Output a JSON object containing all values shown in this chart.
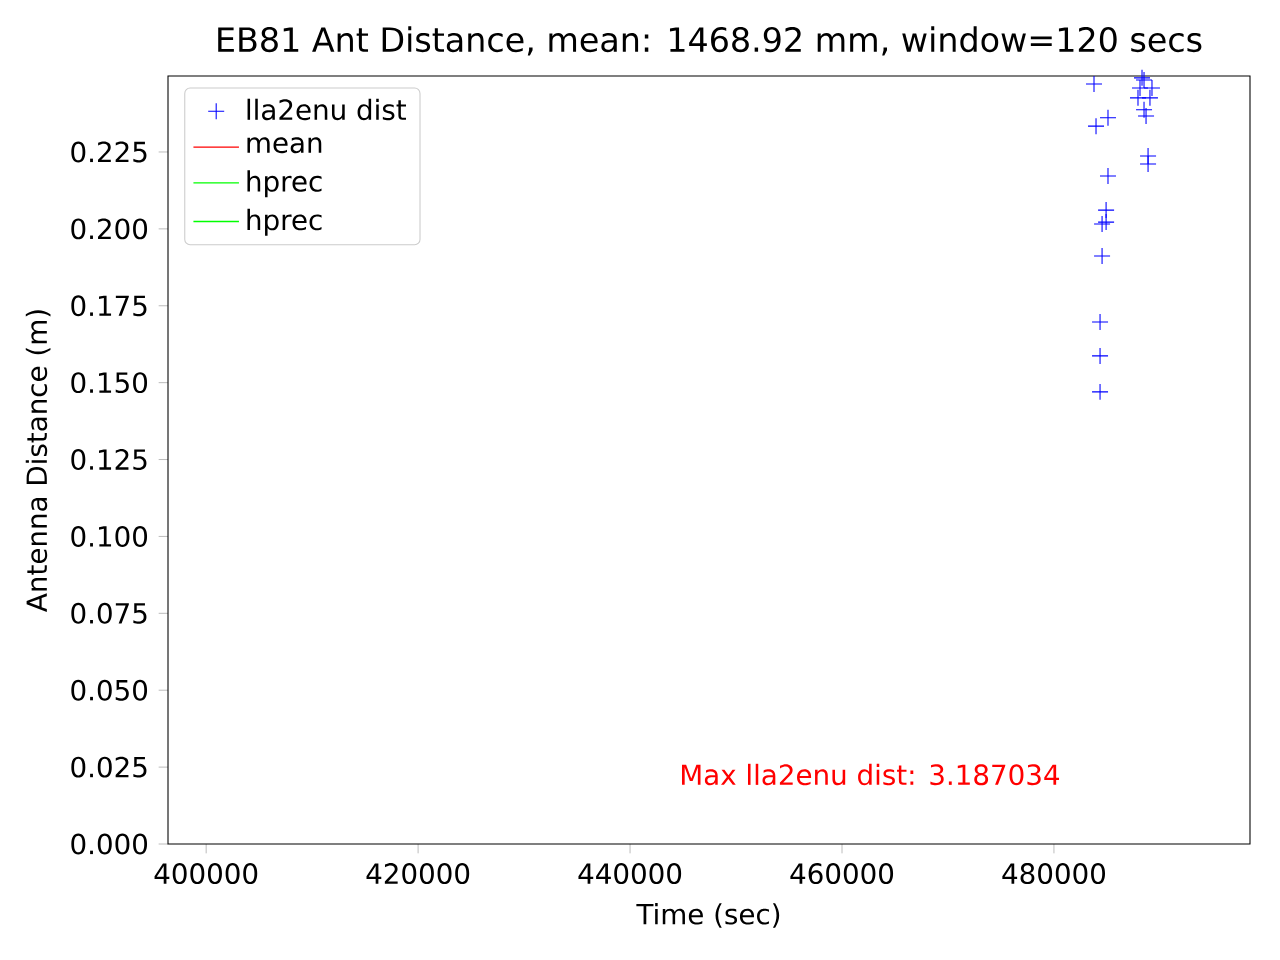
{
  "chart_data": {
    "type": "scatter",
    "title": "EB81 Ant Distance, mean: 1468.92 mm, window=120 secs",
    "xlabel": "Time (sec)",
    "ylabel": "Antenna Distance (m)",
    "xlim": [
      396400,
      498500
    ],
    "ylim": [
      0,
      0.2497
    ],
    "xticks": [
      400000,
      420000,
      440000,
      460000,
      480000
    ],
    "yticks": [
      {
        "value": 0,
        "label": "0.000"
      },
      {
        "value": 0.025,
        "label": "0.025"
      },
      {
        "value": 0.05,
        "label": "0.050"
      },
      {
        "value": 0.075,
        "label": "0.075"
      },
      {
        "value": 0.1,
        "label": "0.100"
      },
      {
        "value": 0.125,
        "label": "0.125"
      },
      {
        "value": 0.15,
        "label": "0.150"
      },
      {
        "value": 0.175,
        "label": "0.175"
      },
      {
        "value": 0.2,
        "label": "0.200"
      },
      {
        "value": 0.225,
        "label": "0.225"
      }
    ],
    "marker": "cross",
    "legend": "top left",
    "grid": false,
    "annotations": [
      "Max lla2enu dist: 3.187034"
    ],
    "series": [
      {
        "name": "lla2enu dist",
        "color": "#0000ff",
        "x": [
          483780,
          488310,
          488500,
          488120,
          489250,
          489060,
          487930,
          488500,
          488690,
          483970,
          485100,
          485100,
          484920,
          484540,
          484920,
          484540,
          484350,
          484350,
          484350,
          488880,
          488880
        ],
        "values": [
          0.2471,
          0.2491,
          0.2484,
          0.2458,
          0.2458,
          0.2426,
          0.2426,
          0.2387,
          0.2367,
          0.2334,
          0.2361,
          0.2172,
          0.2061,
          0.2016,
          0.2022,
          0.1912,
          0.1697,
          0.1587,
          0.147,
          0.2237,
          0.2211
        ]
      },
      {
        "name": "mean",
        "type": "line",
        "color": "#ff0000"
      },
      {
        "name": "hprec",
        "type": "line",
        "color": "#00ff00"
      },
      {
        "name": "hprec",
        "type": "line",
        "color": "#00ff00"
      }
    ]
  }
}
